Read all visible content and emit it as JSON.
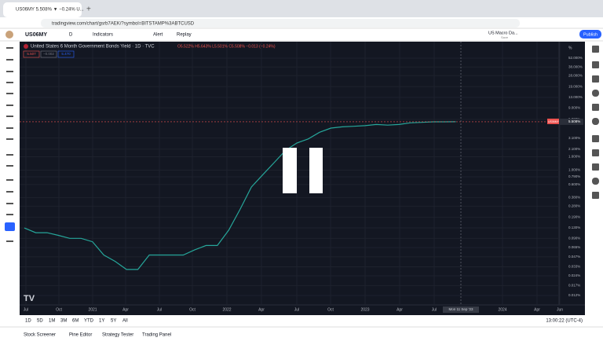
{
  "browser": {
    "tab_title": "US06MY 5.508% ▼ −0.24% U...",
    "url": "tradingview.com/chart/gsrb7AEK/?symbol=BITSTAMP%3ABTCUSD"
  },
  "toolbar": {
    "symbol": "US06MY",
    "interval": "D",
    "indicators": "Indicators",
    "alert": "Alert",
    "replay": "Replay",
    "layout": "US Macro Da...",
    "layout_sub": "Save",
    "publish": "Publish"
  },
  "legend": {
    "title": "United States 6 Month Government Bonds Yield · 1D · TVC",
    "ohlc": "O5.522% H5.643% L5.501% C5.508% −0.013 (−0.24%)",
    "boxes": [
      "5.507",
      "−0.002",
      "5.470"
    ]
  },
  "chart_data": {
    "type": "line",
    "color": "#26a69a",
    "log_scale": true,
    "ylim": [
      0.0086,
      93
    ],
    "yticks": [
      {
        "value": 52,
        "label": "52.000%"
      },
      {
        "value": 38,
        "label": "38.000%"
      },
      {
        "value": 28,
        "label": "28.000%"
      },
      {
        "value": 19,
        "label": "19.000%"
      },
      {
        "value": 13,
        "label": "13.000%"
      },
      {
        "value": 9,
        "label": "9.000%"
      },
      {
        "value": 6,
        "label": "6.000%"
      },
      {
        "value": 3.1,
        "label": "3.100%"
      },
      {
        "value": 2.1,
        "label": "2.100%"
      },
      {
        "value": 1.6,
        "label": "1.600%"
      },
      {
        "value": 1,
        "label": "1.000%"
      },
      {
        "value": 0.79,
        "label": "0.790%"
      },
      {
        "value": 0.6,
        "label": "0.600%"
      },
      {
        "value": 0.38,
        "label": "0.380%"
      },
      {
        "value": 0.28,
        "label": "0.280%"
      },
      {
        "value": 0.19,
        "label": "0.190%"
      },
      {
        "value": 0.13,
        "label": "0.130%"
      },
      {
        "value": 0.09,
        "label": "0.090%"
      },
      {
        "value": 0.065,
        "label": "0.065%"
      },
      {
        "value": 0.047,
        "label": "0.047%"
      },
      {
        "value": 0.033,
        "label": "0.033%"
      },
      {
        "value": 0.024,
        "label": "0.024%"
      },
      {
        "value": 0.017,
        "label": "0.017%"
      },
      {
        "value": 0.012,
        "label": "0.012%"
      }
    ],
    "axis_unit": "%",
    "values": [
      0.13,
      0.11,
      0.11,
      0.1,
      0.09,
      0.09,
      0.08,
      0.05,
      0.04,
      0.03,
      0.03,
      0.05,
      0.05,
      0.05,
      0.05,
      0.06,
      0.07,
      0.07,
      0.12,
      0.25,
      0.55,
      0.85,
      1.3,
      2.0,
      2.6,
      3.0,
      3.8,
      4.4,
      4.6,
      4.7,
      4.8,
      5.0,
      4.9,
      5.0,
      5.3,
      5.4,
      5.5,
      5.5,
      5.508
    ],
    "last_label": "5.508%",
    "symbol_tag": "US06MY",
    "time_labels": [
      "Jul",
      "Oct",
      "2021",
      "Apr",
      "Jul",
      "Oct",
      "2022",
      "Apr",
      "Jul",
      "Oct",
      "2023",
      "Apr",
      "Jul",
      "2024",
      "Apr",
      "Jun"
    ],
    "crosshair_time": "Mon 11 Sep '23"
  },
  "bottom_bar": {
    "ranges": [
      "1D",
      "5D",
      "1M",
      "3M",
      "6M",
      "YTD",
      "1Y",
      "5Y",
      "All"
    ],
    "clock": "13:00:22 (UTC-4)"
  },
  "panel_tabs": [
    "Stock Screener",
    "Pine Editor",
    "Strategy Tester",
    "Trading Panel"
  ]
}
